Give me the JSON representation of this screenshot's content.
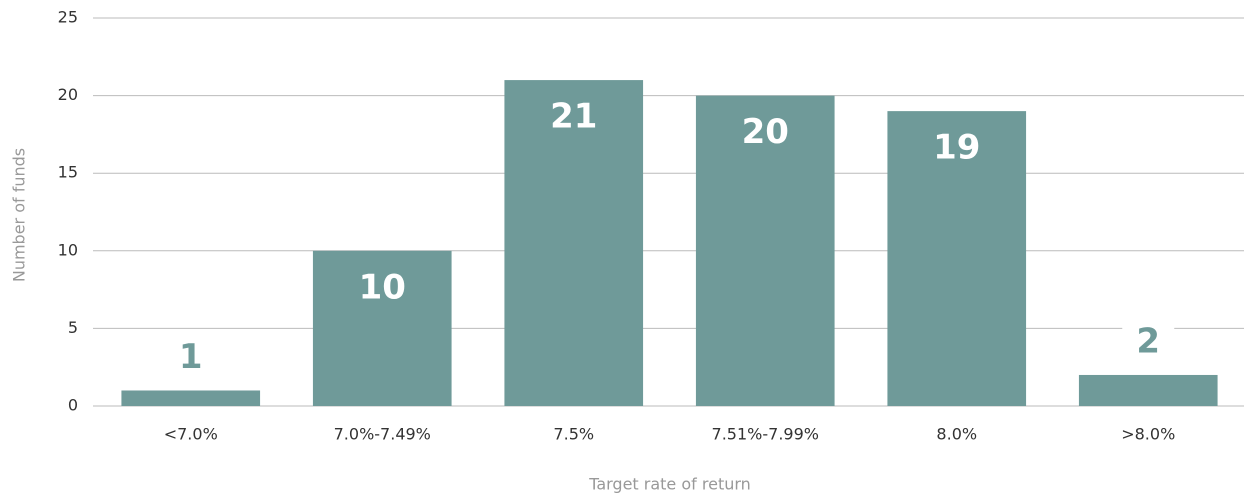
{
  "chart_data": {
    "type": "bar",
    "x_label": "Target rate of return",
    "y_label": "Number of funds",
    "categories": [
      "<7.0%",
      "7.0%-7.49%",
      "7.5%",
      "7.51%-7.99%",
      "8.0%",
      ">8.0%"
    ],
    "values": [
      1,
      10,
      21,
      20,
      19,
      2
    ],
    "color": "#6f9a99",
    "ylim": [
      0,
      25
    ],
    "yticks": [
      0,
      5,
      10,
      15,
      20,
      25
    ],
    "grid": true
  }
}
